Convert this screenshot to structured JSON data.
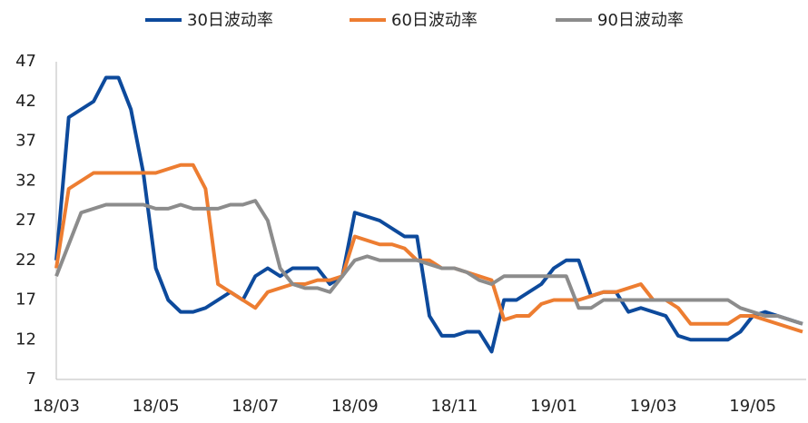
{
  "chart_data": {
    "type": "line",
    "categories": [
      "18/03",
      null,
      null,
      null,
      null,
      null,
      null,
      null,
      "18/05",
      null,
      null,
      null,
      null,
      null,
      null,
      null,
      "18/07",
      null,
      null,
      null,
      null,
      null,
      null,
      null,
      "18/09",
      null,
      null,
      null,
      null,
      null,
      null,
      null,
      "18/11",
      null,
      null,
      null,
      null,
      null,
      null,
      null,
      "19/01",
      null,
      null,
      null,
      null,
      null,
      null,
      null,
      "19/03",
      null,
      null,
      null,
      null,
      null,
      null,
      null,
      "19/05",
      null,
      null,
      null,
      null
    ],
    "series": [
      {
        "name": "30日波动率",
        "color": "#0d4a9c",
        "values": [
          22,
          40,
          41,
          42,
          45,
          45,
          41,
          33,
          21,
          17,
          15.5,
          15.5,
          16,
          17,
          18,
          17,
          20,
          21,
          20,
          21,
          21,
          21,
          19,
          20,
          28,
          27.5,
          27,
          26,
          25,
          25,
          15,
          12.5,
          12.5,
          13,
          13,
          10.5,
          17,
          17,
          18,
          19,
          21,
          22,
          22,
          17.5,
          18,
          18,
          15.5,
          16,
          15.5,
          15,
          12.5,
          12,
          12,
          12,
          12,
          13,
          15,
          15.5,
          15,
          14.5,
          14
        ]
      },
      {
        "name": "60日波动率",
        "color": "#ed7d31",
        "values": [
          21,
          31,
          32,
          33,
          33,
          33,
          33,
          33,
          33,
          33.5,
          34,
          34,
          31,
          19,
          18,
          17,
          16,
          18,
          18.5,
          19,
          19,
          19.5,
          19.5,
          20,
          25,
          24.5,
          24,
          24,
          23.5,
          22,
          22,
          21,
          21,
          20.5,
          20,
          19.5,
          14.5,
          15,
          15,
          16.5,
          17,
          17,
          17,
          17.5,
          18,
          18,
          18.5,
          19,
          17,
          17,
          16,
          14,
          14,
          14,
          14,
          15,
          15,
          14.5,
          14,
          13.5,
          13
        ]
      },
      {
        "name": "90日波动率",
        "color": "#8c8c8c",
        "values": [
          20,
          24,
          28,
          28.5,
          29,
          29,
          29,
          29,
          28.5,
          28.5,
          29,
          28.5,
          28.5,
          28.5,
          29,
          29,
          29.5,
          27,
          21,
          19,
          18.5,
          18.5,
          18,
          20,
          22,
          22.5,
          22,
          22,
          22,
          22,
          21.5,
          21,
          21,
          20.5,
          19.5,
          19,
          20,
          20,
          20,
          20,
          20,
          20,
          16,
          16,
          17,
          17,
          17,
          17,
          17,
          17,
          17,
          17,
          17,
          17,
          17,
          16,
          15.5,
          15,
          15,
          14.5,
          14
        ]
      }
    ],
    "ylim": [
      7,
      47
    ],
    "yticks": [
      7,
      12,
      17,
      22,
      27,
      32,
      37,
      42,
      47
    ]
  }
}
